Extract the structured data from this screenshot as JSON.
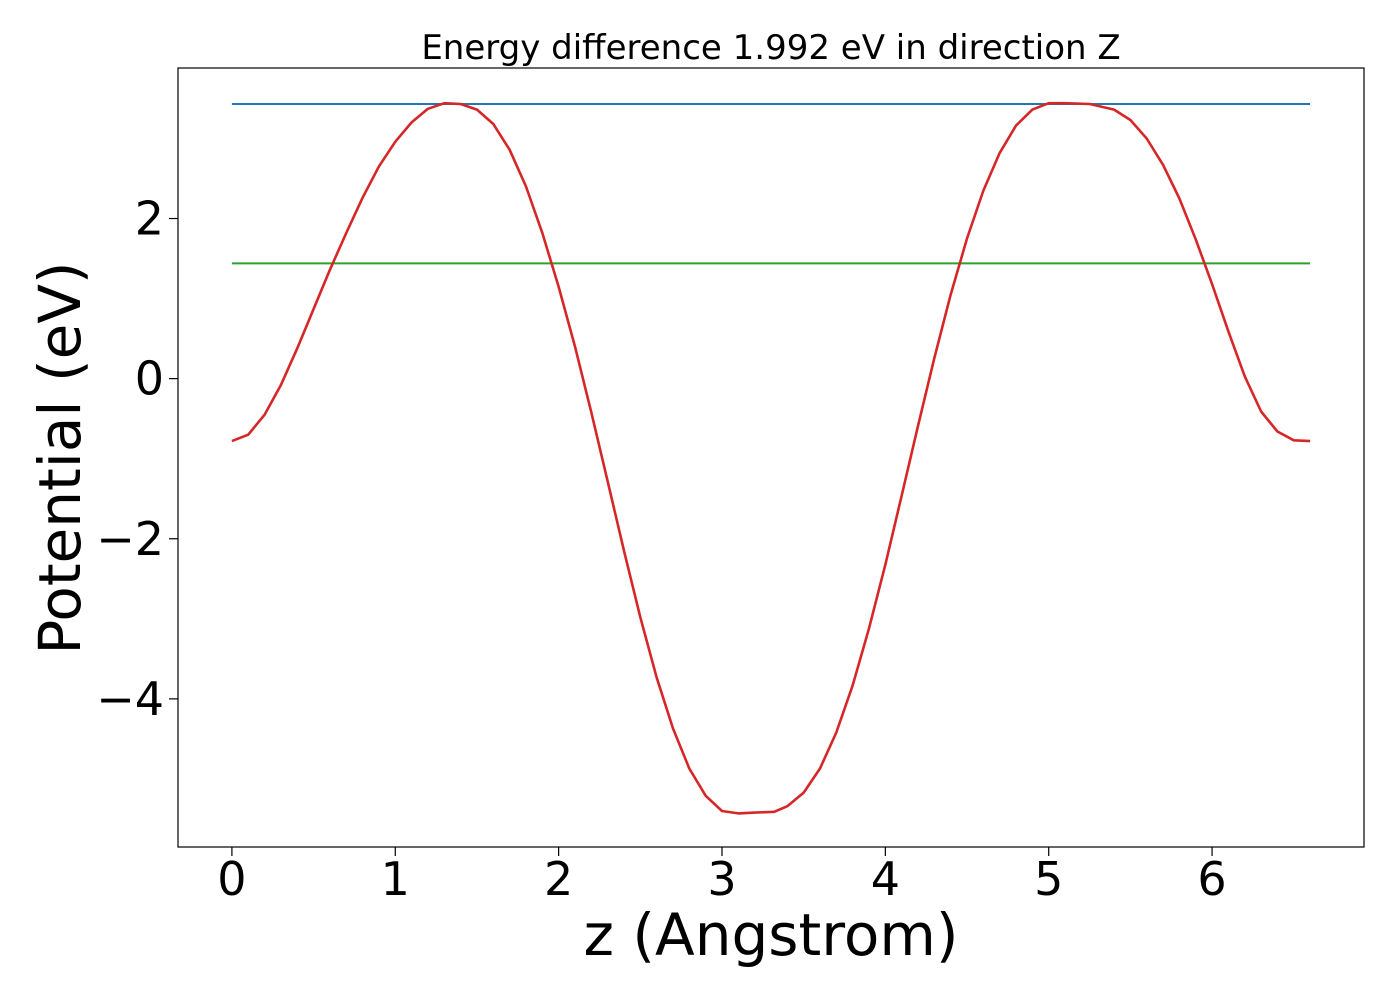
{
  "chart_data": {
    "type": "line",
    "title": "Energy difference 1.992 eV in direction Z",
    "xlabel": "z (Angstrom)",
    "ylabel": "Potential (eV)",
    "xlim": [
      -0.33,
      6.93
    ],
    "ylim": [
      -5.85,
      3.88
    ],
    "xticks": [
      0,
      1,
      2,
      3,
      4,
      5,
      6
    ],
    "xtick_labels": [
      "0",
      "1",
      "2",
      "3",
      "4",
      "5",
      "6"
    ],
    "yticks": [
      -4,
      -2,
      0,
      2
    ],
    "ytick_labels": [
      "−4",
      "−2",
      "0",
      "2"
    ],
    "grid": false,
    "legend": "none",
    "series": [
      {
        "color": "#1f77b4",
        "x": [
          0.0,
          6.6
        ],
        "y": [
          3.43,
          3.43
        ]
      },
      {
        "color": "#2ca02c",
        "x": [
          0.0,
          6.6
        ],
        "y": [
          1.44,
          1.44
        ]
      },
      {
        "color": "#d62728",
        "x": [
          0.0,
          0.1,
          0.2,
          0.3,
          0.4,
          0.5,
          0.6,
          0.7,
          0.8,
          0.9,
          1.0,
          1.1,
          1.2,
          1.3,
          1.4,
          1.5,
          1.6,
          1.7,
          1.8,
          1.9,
          2.0,
          2.1,
          2.2,
          2.3,
          2.4,
          2.5,
          2.6,
          2.7,
          2.8,
          2.9,
          3.0,
          3.1,
          3.2,
          3.32,
          3.4,
          3.5,
          3.6,
          3.7,
          3.8,
          3.9,
          4.0,
          4.1,
          4.2,
          4.3,
          4.4,
          4.5,
          4.6,
          4.7,
          4.8,
          4.9,
          5.0,
          5.1,
          5.25,
          5.4,
          5.5,
          5.6,
          5.7,
          5.8,
          5.9,
          6.0,
          6.1,
          6.2,
          6.3,
          6.4,
          6.5,
          6.6
        ],
        "y": [
          -0.78,
          -0.7,
          -0.45,
          -0.08,
          0.38,
          0.87,
          1.36,
          1.82,
          2.26,
          2.65,
          2.96,
          3.2,
          3.37,
          3.44,
          3.43,
          3.36,
          3.18,
          2.86,
          2.4,
          1.82,
          1.15,
          0.4,
          -0.42,
          -1.28,
          -2.15,
          -2.98,
          -3.73,
          -4.37,
          -4.87,
          -5.21,
          -5.4,
          -5.43,
          -5.42,
          -5.41,
          -5.34,
          -5.17,
          -4.87,
          -4.42,
          -3.83,
          -3.12,
          -2.32,
          -1.46,
          -0.59,
          0.26,
          1.05,
          1.75,
          2.35,
          2.82,
          3.16,
          3.36,
          3.44,
          3.44,
          3.43,
          3.36,
          3.23,
          3.0,
          2.67,
          2.25,
          1.74,
          1.18,
          0.59,
          0.03,
          -0.41,
          -0.66,
          -0.77,
          -0.78
        ]
      }
    ]
  }
}
